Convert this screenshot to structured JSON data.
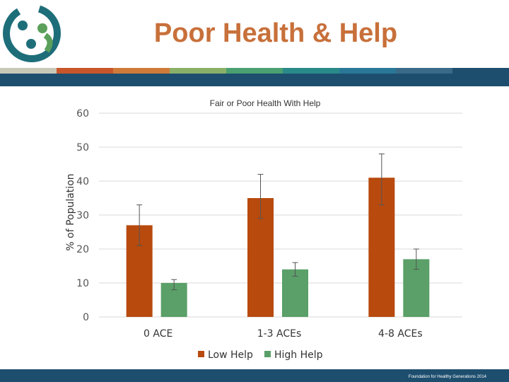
{
  "slide": {
    "title": "Poor Health & Help",
    "footer": "Foundation for Healthy Generations 2014"
  },
  "logo": {
    "icon": "three-people-circle-logo",
    "colors": [
      "#1e6e7a",
      "#5aa05a",
      "#d0d8d8"
    ]
  },
  "colors": {
    "title": "#c8703a",
    "band": "#1e4e6e",
    "stripe": [
      "#c8c8b8",
      "#c8562a",
      "#d07a3a",
      "#8ab068",
      "#4aa070",
      "#2a8a8a",
      "#2a7898",
      "#3a6a88",
      "#1e4e6e"
    ]
  },
  "chart_data": {
    "type": "bar",
    "title": "Fair or Poor Health With Help",
    "xlabel": "",
    "ylabel": "% of Population",
    "ylim": [
      0,
      60
    ],
    "yticks": [
      0,
      10,
      20,
      30,
      40,
      50,
      60
    ],
    "grid": true,
    "legend_position": "bottom",
    "categories": [
      "0 ACE",
      "1-3 ACEs",
      "4-8 ACEs"
    ],
    "series": [
      {
        "name": "Low Help",
        "color": "#b84a0e",
        "values": [
          27,
          35,
          41
        ],
        "error_low": [
          21,
          29,
          33
        ],
        "error_high": [
          33,
          42,
          48
        ]
      },
      {
        "name": "High Help",
        "color": "#5aa068",
        "values": [
          10,
          14,
          17
        ],
        "error_low": [
          8,
          12,
          14
        ],
        "error_high": [
          11,
          16,
          20
        ]
      }
    ]
  }
}
